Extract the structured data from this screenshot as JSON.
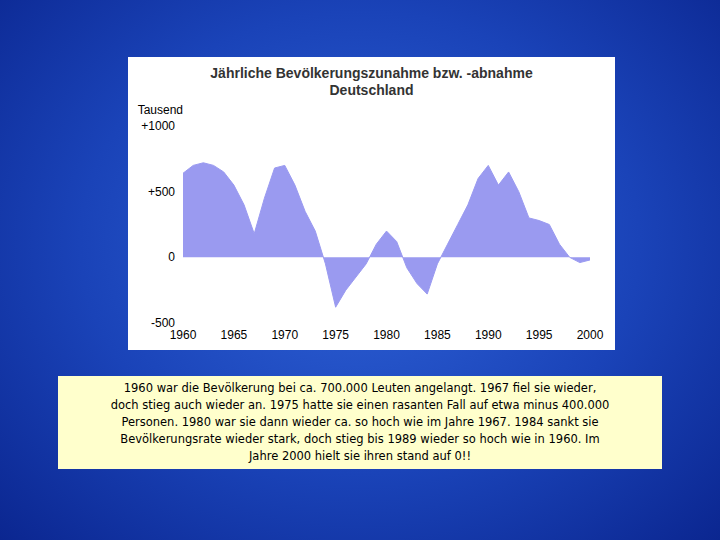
{
  "chart_data": {
    "type": "area",
    "title": "Jährliche Bevölkerungszunahme bzw. -abnahme\nDeutschland",
    "ylabel": "Tausend",
    "x": [
      1960,
      1961,
      1962,
      1963,
      1964,
      1965,
      1966,
      1967,
      1968,
      1969,
      1970,
      1971,
      1972,
      1973,
      1974,
      1975,
      1976,
      1977,
      1978,
      1979,
      1980,
      1981,
      1982,
      1983,
      1984,
      1985,
      1986,
      1987,
      1988,
      1989,
      1990,
      1991,
      1992,
      1993,
      1994,
      1995,
      1996,
      1997,
      1998,
      1999,
      2000
    ],
    "values": [
      640,
      700,
      720,
      700,
      650,
      550,
      400,
      180,
      450,
      680,
      700,
      550,
      350,
      200,
      -50,
      -380,
      -250,
      -150,
      -50,
      100,
      200,
      120,
      -80,
      -200,
      -280,
      -50,
      100,
      250,
      400,
      600,
      700,
      550,
      650,
      500,
      300,
      280,
      250,
      100,
      0,
      -40,
      -20
    ],
    "color": "#9a9af0",
    "xlim": [
      1960,
      2000
    ],
    "xticks": [
      1960,
      1965,
      1970,
      1975,
      1980,
      1985,
      1990,
      1995,
      2000
    ],
    "ylim": [
      -500,
      1000
    ],
    "yticks": [
      -500,
      0,
      {
        "value": 500,
        "label": "+500"
      },
      {
        "value": 1000,
        "label": "+1000"
      }
    ],
    "grid": false
  },
  "caption": [
    "1960 war die Bevölkerung bei ca. 700.000 Leuten angelangt. 1967 fiel sie wieder,",
    "doch stieg auch wieder an. 1975 hatte sie einen rasanten Fall auf etwa minus 400.000",
    "Personen. 1980 war sie dann wieder ca. so hoch wie im Jahre 1967. 1984 sankt sie",
    "Bevölkerungsrate wieder stark, doch stieg bis 1989 wieder so hoch wie in 1960. Im",
    "Jahre 2000 hielt sie ihren stand auf 0!!"
  ]
}
